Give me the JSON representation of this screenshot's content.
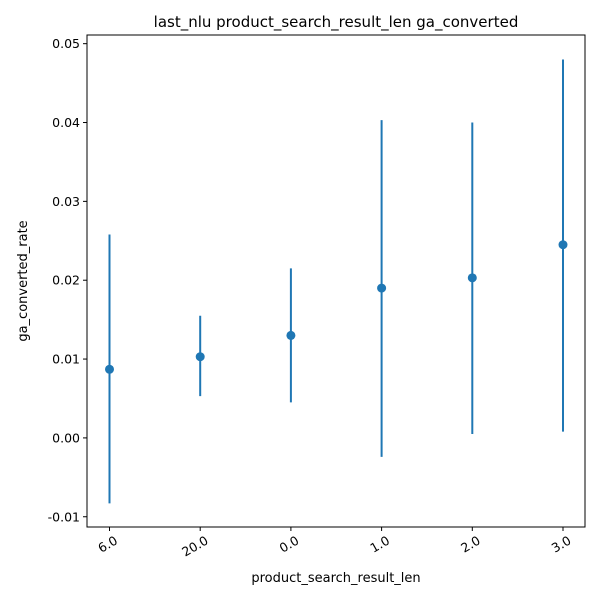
{
  "chart_data": {
    "type": "scatter",
    "title": "last_nlu product_search_result_len ga_converted",
    "xlabel": "product_search_result_len",
    "ylabel": "ga_converted_rate",
    "categories": [
      "6.0",
      "20.0",
      "0.0",
      "1.0",
      "2.0",
      "3.0"
    ],
    "values": [
      0.0087,
      0.0103,
      0.013,
      0.019,
      0.0203,
      0.0245
    ],
    "error_low": [
      -0.0083,
      0.0053,
      0.0045,
      -0.0024,
      0.0005,
      0.0008
    ],
    "error_high": [
      0.0258,
      0.0155,
      0.0215,
      0.0403,
      0.04,
      0.048
    ],
    "ylim": [
      -0.0113,
      0.0511
    ],
    "yticks": [
      "-0.01",
      "0.00",
      "0.01",
      "0.02",
      "0.03",
      "0.04",
      "0.05"
    ],
    "ytick_values": [
      -0.01,
      0.0,
      0.01,
      0.02,
      0.03,
      0.04,
      0.05
    ],
    "grid": false,
    "marker_color": "#1f77b4"
  }
}
